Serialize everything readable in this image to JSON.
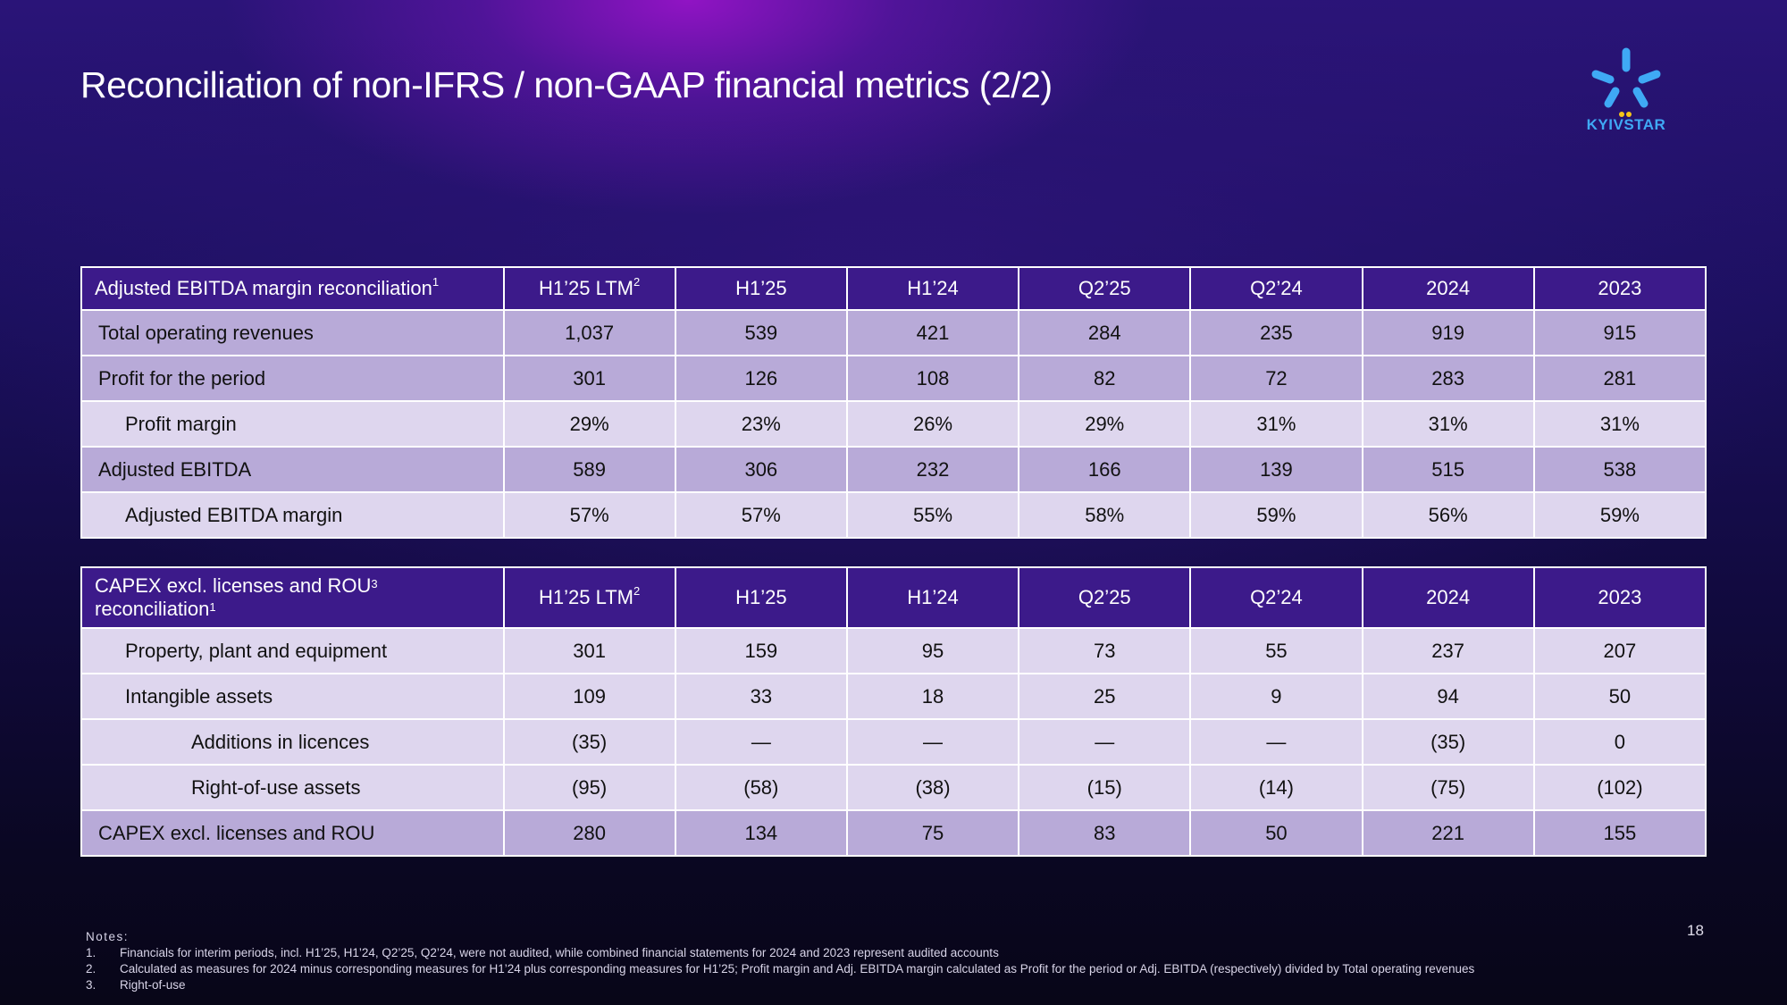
{
  "title": "Reconciliation of non-IFRS / non-GAAP financial metrics (2/2)",
  "logo": {
    "text": "KYIVSTAR",
    "icon": "kyivstar-star-icon"
  },
  "columns": [
    "H1’25 LTM",
    "H1’25",
    "H1’24",
    "Q2’25",
    "Q2’24",
    "2024",
    "2023"
  ],
  "first_col_sup": "2",
  "table1": {
    "header": "Adjusted EBITDA margin reconciliation",
    "header_sup": "1",
    "rows": [
      {
        "label": "Total operating revenues",
        "values": [
          "1,037",
          "539",
          "421",
          "284",
          "235",
          "919",
          "915"
        ]
      },
      {
        "label": "Profit for the period",
        "values": [
          "301",
          "126",
          "108",
          "82",
          "72",
          "283",
          "281"
        ]
      },
      {
        "label": "Profit margin",
        "values": [
          "29%",
          "23%",
          "26%",
          "29%",
          "31%",
          "31%",
          "31%"
        ]
      },
      {
        "label": "Adjusted EBITDA",
        "values": [
          "589",
          "306",
          "232",
          "166",
          "139",
          "515",
          "538"
        ]
      },
      {
        "label": "Adjusted EBITDA margin",
        "values": [
          "57%",
          "57%",
          "55%",
          "58%",
          "59%",
          "56%",
          "59%"
        ]
      }
    ]
  },
  "table2": {
    "header_line1": "CAPEX excl. licenses and ROU",
    "header_sup1": "3",
    "header_line2": "reconciliation",
    "header_sup2": "1",
    "rows": [
      {
        "label": "Property, plant and equipment",
        "values": [
          "301",
          "159",
          "95",
          "73",
          "55",
          "237",
          "207"
        ]
      },
      {
        "label": "Intangible assets",
        "values": [
          "109",
          "33",
          "18",
          "25",
          "9",
          "94",
          "50"
        ]
      },
      {
        "label": "Additions in licences",
        "values": [
          "(35)",
          "—",
          "—",
          "—",
          "—",
          "(35)",
          "0"
        ]
      },
      {
        "label": "Right-of-use assets",
        "values": [
          "(95)",
          "(58)",
          "(38)",
          "(15)",
          "(14)",
          "(75)",
          "(102)"
        ]
      },
      {
        "label": "CAPEX excl. licenses and ROU",
        "values": [
          "280",
          "134",
          "75",
          "83",
          "50",
          "221",
          "155"
        ]
      }
    ]
  },
  "notes": {
    "heading": "Notes:",
    "items": [
      {
        "num": "1.",
        "text": "Financials for interim periods, incl. H1’25, H1’24, Q2’25, Q2’24, were not audited, while combined financial statements for 2024 and 2023 represent audited accounts"
      },
      {
        "num": "2.",
        "text": "Calculated as measures for 2024 minus corresponding measures for H1’24 plus corresponding measures for H1’25; Profit margin and Adj. EBITDA margin calculated as Profit for the period or Adj. EBITDA (respectively) divided by Total operating revenues"
      },
      {
        "num": "3.",
        "text": "Right-of-use"
      }
    ]
  },
  "page_number": "18",
  "colors": {
    "header_bg": "#3c1a8a",
    "row_dark": "#b8aad8",
    "row_light": "#ded6ee",
    "logo_blue": "#3fa9f5",
    "logo_yellow": "#f5c518"
  }
}
